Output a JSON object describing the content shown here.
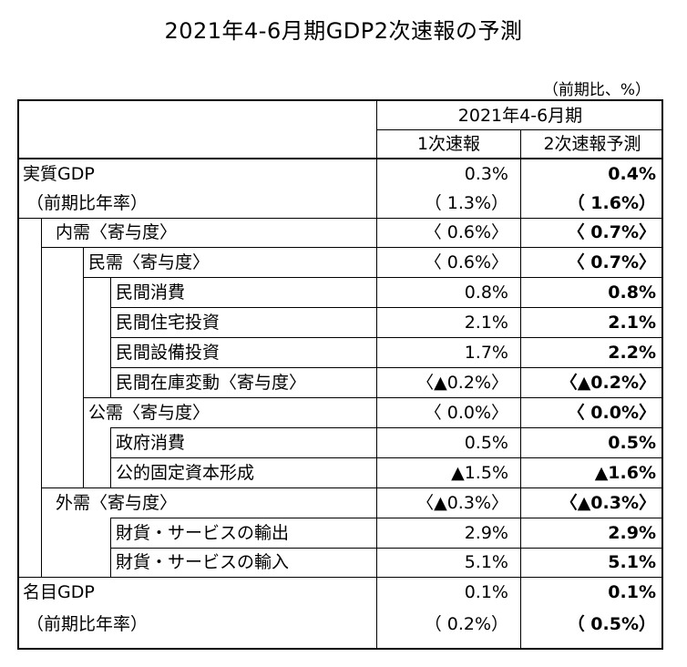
{
  "title": "2021年4-6月期GDP2次速報の予測",
  "unit_note": "（前期比、%）",
  "header": {
    "period": "2021年4-6月期",
    "col1": "1次速報",
    "col2": "2次速報予測"
  },
  "rows": [
    {
      "label": "実質GDP",
      "v1": "0.3%",
      "v2": "0.4%"
    },
    {
      "label": "（前期比年率）",
      "v1": "（ 1.3%）",
      "v2": "（ 1.6%）"
    },
    {
      "label": "内需〈寄与度〉",
      "v1": "〈 0.6%〉",
      "v2": "〈 0.7%〉"
    },
    {
      "label": "民需〈寄与度〉",
      "v1": "〈 0.6%〉",
      "v2": "〈 0.7%〉"
    },
    {
      "label": "民間消費",
      "v1": "0.8%",
      "v2": "0.8%"
    },
    {
      "label": "民間住宅投資",
      "v1": "2.1%",
      "v2": "2.1%"
    },
    {
      "label": "民間設備投資",
      "v1": "1.7%",
      "v2": "2.2%"
    },
    {
      "label": "民間在庫変動〈寄与度〉",
      "v1": "〈▲0.2%〉",
      "v2": "〈▲0.2%〉"
    },
    {
      "label": "公需〈寄与度〉",
      "v1": "〈 0.0%〉",
      "v2": "〈 0.0%〉"
    },
    {
      "label": "政府消費",
      "v1": "0.5%",
      "v2": "0.5%"
    },
    {
      "label": "公的固定資本形成",
      "v1": "▲1.5%",
      "v2": "▲1.6%"
    },
    {
      "label": "外需〈寄与度〉",
      "v1": "〈▲0.3%〉",
      "v2": "〈▲0.3%〉"
    },
    {
      "label": "財貨・サービスの輸出",
      "v1": "2.9%",
      "v2": "2.9%"
    },
    {
      "label": "財貨・サービスの輸入",
      "v1": "5.1%",
      "v2": "5.1%"
    },
    {
      "label": "名目GDP",
      "v1": "0.1%",
      "v2": "0.1%"
    },
    {
      "label": "（前期比年率）",
      "v1": "（ 0.2%）",
      "v2": "（ 0.5%）"
    }
  ]
}
